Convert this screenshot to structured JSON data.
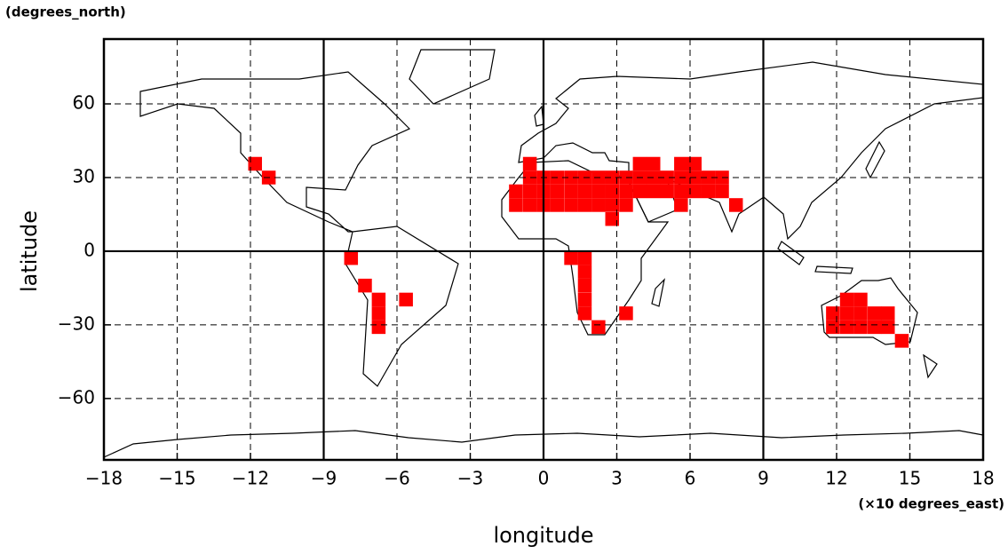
{
  "chart_data": {
    "type": "map",
    "y_unit_label": "(degrees_north)",
    "ylabel": "latitude",
    "xlabel": "longitude",
    "x_unit_label": "(×10 degrees_east)",
    "color": "#ff0000",
    "xlim": [
      -18,
      18
    ],
    "ylim": [
      -85,
      86.4
    ],
    "xticks": [
      {
        "value": -18,
        "label": "−18"
      },
      {
        "value": -15,
        "label": "−15"
      },
      {
        "value": -12,
        "label": "−12"
      },
      {
        "value": -9,
        "label": "−9"
      },
      {
        "value": -6,
        "label": "−6"
      },
      {
        "value": -3,
        "label": "−3"
      },
      0,
      3,
      6,
      9,
      12,
      15,
      18
    ],
    "yticks": [
      {
        "value": -60,
        "label": "−60"
      },
      {
        "value": -30,
        "label": "−30"
      },
      0,
      30,
      60
    ],
    "grid": true,
    "x": [
      -11.81,
      -11.25,
      -7.88,
      -7.31,
      -6.75,
      -6.75,
      -6.75,
      -5.63,
      -0.56,
      3.94,
      4.5,
      5.63,
      6.19,
      -0.56,
      0,
      0.56,
      1.13,
      1.69,
      2.25,
      2.81,
      3.38,
      3.94,
      4.5,
      5.06,
      5.63,
      6.19,
      6.75,
      7.31,
      -1.13,
      -0.56,
      0,
      0.56,
      1.13,
      1.69,
      2.25,
      2.81,
      3.38,
      3.94,
      4.5,
      5.06,
      5.63,
      6.19,
      6.75,
      7.31,
      -1.13,
      -0.56,
      0,
      0.56,
      1.13,
      1.69,
      2.25,
      2.81,
      3.38,
      5.63,
      7.88,
      2.81,
      1.13,
      1.69,
      1.69,
      1.69,
      1.69,
      1.69,
      2.25,
      3.38,
      12.42,
      12.98,
      11.85,
      12.42,
      12.98,
      13.55,
      14.1,
      11.85,
      12.42,
      12.98,
      13.55,
      14.1,
      14.67
    ],
    "y": [
      35.6,
      30,
      -2.8,
      -14,
      -19.7,
      -25.3,
      -30.9,
      -19.7,
      35.6,
      35.6,
      35.6,
      35.6,
      35.6,
      30,
      30,
      30,
      30,
      30,
      30,
      30,
      30,
      30,
      30,
      30,
      30,
      30,
      30,
      30,
      24.4,
      24.4,
      24.4,
      24.4,
      24.4,
      24.4,
      24.4,
      24.4,
      24.4,
      24.4,
      24.4,
      24.4,
      24.4,
      24.4,
      24.4,
      24.4,
      18.8,
      18.8,
      18.8,
      18.8,
      18.8,
      18.8,
      18.8,
      18.8,
      18.8,
      18.8,
      18.8,
      13.1,
      -2.8,
      -2.8,
      -8.4,
      -14,
      -19.7,
      -25.3,
      -30.9,
      -25.3,
      -19.7,
      -19.7,
      -25.3,
      -25.3,
      -25.3,
      -25.3,
      -25.3,
      -30.9,
      -30.9,
      -30.9,
      -30.9,
      -30.9,
      -36.5
    ]
  }
}
